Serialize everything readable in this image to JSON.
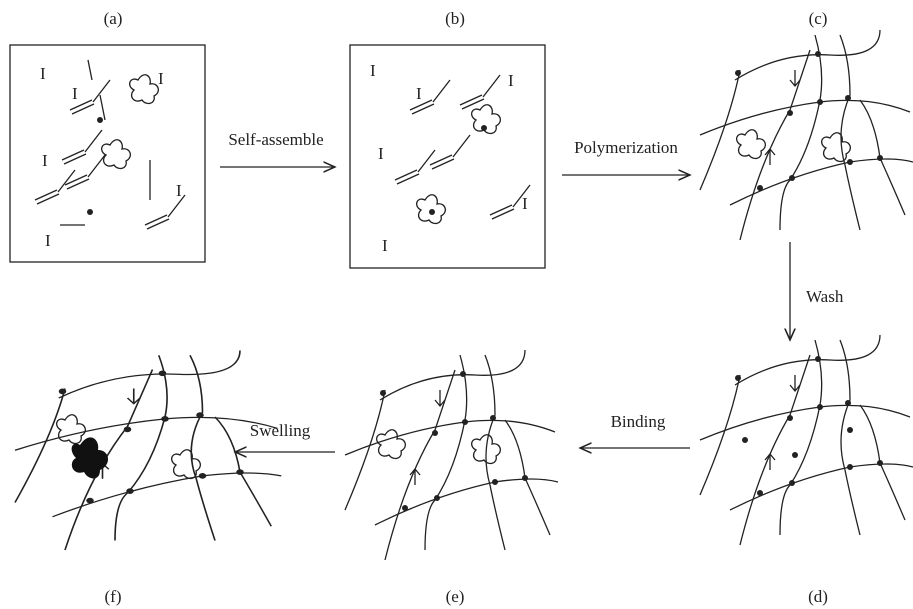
{
  "panels": [
    {
      "label": "(a)",
      "initiators": [
        "I",
        "I",
        "I",
        "I",
        "I",
        "I"
      ]
    },
    {
      "label": "(b)",
      "initiators": [
        "I",
        "I",
        "I",
        "I",
        "I",
        "I"
      ]
    },
    {
      "label": "(c)"
    },
    {
      "label": "(d)"
    },
    {
      "label": "(e)"
    },
    {
      "label": "(f)"
    }
  ],
  "steps": [
    {
      "label": "Self-assemble"
    },
    {
      "label": "Polymerization"
    },
    {
      "label": "Wash"
    },
    {
      "label": "Binding"
    },
    {
      "label": "Swelling"
    }
  ]
}
